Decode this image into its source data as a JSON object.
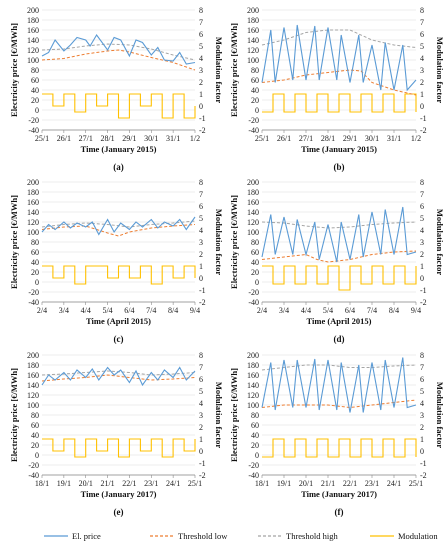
{
  "colors": {
    "price": "#5b9bd5",
    "low": "#ed7d31",
    "high": "#a5a5a5",
    "mod": "#ffc000",
    "grid": "#d9d9d9"
  },
  "legend": [
    {
      "key": "price",
      "label": "El. price",
      "style": "solid"
    },
    {
      "key": "low",
      "label": "Threshold low",
      "style": "dashed"
    },
    {
      "key": "high",
      "label": "Threshold high",
      "style": "dashed"
    },
    {
      "key": "mod",
      "label": "Modulation",
      "style": "solid"
    }
  ],
  "chart_data": [
    {
      "id": "a",
      "label": "(a)",
      "type": "line",
      "xlabel": "Time (January 2015)",
      "ylabel": "Electricity price [€/MWh]",
      "y2label": "Modulation factor",
      "xticks": [
        "25/1",
        "26/1",
        "27/1",
        "28/1",
        "29/1",
        "30/1",
        "31/1",
        "1/2"
      ],
      "ylim": [
        -40,
        200
      ],
      "y2lim": [
        -2,
        8
      ],
      "yticks": [
        -40,
        -20,
        0,
        20,
        40,
        60,
        80,
        100,
        120,
        140,
        160,
        180,
        200
      ],
      "y2ticks": [
        -2,
        -1,
        0,
        1,
        2,
        3,
        4,
        5,
        6,
        7,
        8
      ],
      "series": [
        {
          "key": "price",
          "x": [
            0,
            0.3,
            0.6,
            1,
            1.3,
            1.6,
            2,
            2.2,
            2.5,
            3,
            3.3,
            3.6,
            4,
            4.3,
            4.6,
            5,
            5.3,
            5.6,
            6,
            6.3,
            6.6,
            7
          ],
          "values": [
            108,
            115,
            140,
            118,
            130,
            145,
            140,
            128,
            150,
            120,
            145,
            140,
            108,
            140,
            135,
            110,
            125,
            100,
            98,
            115,
            92,
            95
          ]
        },
        {
          "key": "low",
          "x": [
            0,
            1,
            2,
            3,
            3.5,
            4,
            5,
            6,
            7
          ],
          "values": [
            100,
            103,
            112,
            118,
            120,
            116,
            105,
            95,
            80
          ]
        },
        {
          "key": "high",
          "x": [
            0,
            1,
            2,
            3,
            4,
            5,
            6,
            7
          ],
          "values": [
            120,
            122,
            128,
            132,
            130,
            122,
            110,
            100
          ]
        },
        {
          "key": "mod",
          "x": [
            0,
            0.5,
            1,
            1.5,
            2,
            2.5,
            3,
            3.5,
            4,
            4.5,
            5,
            5.5,
            6,
            6.5,
            7
          ],
          "values": [
            1,
            0,
            1,
            -0.5,
            1,
            0,
            1,
            -1,
            1,
            0,
            1,
            -1,
            1,
            -1,
            0
          ]
        }
      ]
    },
    {
      "id": "b",
      "label": "(b)",
      "type": "line",
      "xlabel": "Time (January 2015)",
      "ylabel": "Electricity price [€/MWh]",
      "y2label": "Modulation factor",
      "xticks": [
        "25/1",
        "26/1",
        "27/1",
        "28/1",
        "29/1",
        "30/1",
        "31/1",
        "1/2"
      ],
      "ylim": [
        -40,
        200
      ],
      "y2lim": [
        -2,
        8
      ],
      "yticks": [
        -40,
        -20,
        0,
        20,
        40,
        60,
        80,
        100,
        120,
        140,
        160,
        180,
        200
      ],
      "y2ticks": [
        -2,
        -1,
        0,
        1,
        2,
        3,
        4,
        5,
        6,
        7,
        8
      ],
      "series": [
        {
          "key": "price",
          "x": [
            0,
            0.4,
            0.6,
            1,
            1.4,
            1.6,
            2,
            2.4,
            2.6,
            3,
            3.4,
            3.6,
            4,
            4.4,
            4.6,
            5,
            5.4,
            5.6,
            6,
            6.4,
            6.6,
            7
          ],
          "values": [
            55,
            160,
            55,
            165,
            60,
            170,
            60,
            168,
            60,
            165,
            60,
            150,
            55,
            150,
            55,
            130,
            40,
            135,
            40,
            130,
            40,
            60
          ]
        },
        {
          "key": "low",
          "x": [
            0,
            1,
            2,
            3,
            4,
            4.5,
            5,
            6,
            7
          ],
          "values": [
            55,
            60,
            70,
            75,
            80,
            78,
            55,
            40,
            30
          ]
        },
        {
          "key": "high",
          "x": [
            0,
            1,
            2,
            3,
            4,
            5,
            6,
            7
          ],
          "values": [
            130,
            140,
            155,
            160,
            160,
            140,
            130,
            125
          ]
        },
        {
          "key": "mod",
          "x": [
            0,
            0.5,
            1,
            1.5,
            2,
            2.5,
            3,
            3.5,
            4,
            4.5,
            5,
            5.5,
            6,
            6.5,
            7
          ],
          "values": [
            -0.5,
            1,
            -0.5,
            1,
            -0.5,
            1,
            -0.5,
            1,
            -0.5,
            1,
            -0.5,
            1,
            -0.5,
            1,
            -0.5
          ]
        }
      ]
    },
    {
      "id": "c",
      "label": "(c)",
      "type": "line",
      "xlabel": "Time (April 2015)",
      "ylabel": "Electricity price [€/MWh]",
      "y2label": "Modulation factor",
      "xticks": [
        "2/4",
        "3/4",
        "4/4",
        "5/4",
        "6/4",
        "7/4",
        "8/4",
        "9/4"
      ],
      "ylim": [
        -40,
        200
      ],
      "y2lim": [
        -2,
        8
      ],
      "yticks": [
        -40,
        -20,
        0,
        20,
        40,
        60,
        80,
        100,
        120,
        140,
        160,
        180,
        200
      ],
      "y2ticks": [
        -2,
        -1,
        0,
        1,
        2,
        3,
        4,
        5,
        6,
        7,
        8
      ],
      "series": [
        {
          "key": "price",
          "x": [
            0,
            0.3,
            0.6,
            1,
            1.3,
            1.6,
            2,
            2.3,
            2.6,
            3,
            3.3,
            3.6,
            4,
            4.3,
            4.6,
            5,
            5.3,
            5.6,
            6,
            6.3,
            6.6,
            7
          ],
          "values": [
            100,
            115,
            105,
            120,
            108,
            118,
            110,
            120,
            95,
            125,
            100,
            118,
            105,
            120,
            110,
            125,
            108,
            120,
            112,
            125,
            105,
            130
          ]
        },
        {
          "key": "low",
          "x": [
            0,
            1,
            2,
            3,
            3.5,
            4,
            5,
            6,
            7
          ],
          "values": [
            105,
            110,
            112,
            98,
            92,
            100,
            108,
            112,
            115
          ]
        },
        {
          "key": "high",
          "x": [
            0,
            1,
            2,
            3,
            4,
            5,
            6,
            7
          ],
          "values": [
            110,
            115,
            118,
            115,
            110,
            115,
            118,
            122
          ]
        },
        {
          "key": "mod",
          "x": [
            0,
            0.5,
            1,
            1.5,
            2,
            2.5,
            3,
            3.5,
            4,
            4.5,
            5,
            5.5,
            6,
            6.5,
            7
          ],
          "values": [
            1,
            0,
            1,
            -0.5,
            1,
            1,
            0,
            1,
            0,
            1,
            -0.5,
            1,
            0,
            1,
            0
          ]
        }
      ]
    },
    {
      "id": "d",
      "label": "(d)",
      "type": "line",
      "xlabel": "Time (April 2015)",
      "ylabel": "Electricity price [€/MWh]",
      "y2label": "Modulation factor",
      "xticks": [
        "2/4",
        "3/4",
        "4/4",
        "5/4",
        "6/4",
        "7/4",
        "8/4",
        "9/4"
      ],
      "ylim": [
        -40,
        200
      ],
      "y2lim": [
        -2,
        8
      ],
      "yticks": [
        -40,
        -20,
        0,
        20,
        40,
        60,
        80,
        100,
        120,
        140,
        160,
        180,
        200
      ],
      "y2ticks": [
        -2,
        -1,
        0,
        1,
        2,
        3,
        4,
        5,
        6,
        7,
        8
      ],
      "series": [
        {
          "key": "price",
          "x": [
            0,
            0.4,
            0.6,
            1,
            1.4,
            1.6,
            2,
            2.4,
            2.6,
            3,
            3.4,
            3.6,
            4,
            4.4,
            4.6,
            5,
            5.4,
            5.6,
            6,
            6.4,
            6.6,
            7
          ],
          "values": [
            50,
            135,
            55,
            130,
            55,
            125,
            55,
            120,
            45,
            115,
            40,
            120,
            45,
            135,
            50,
            140,
            55,
            145,
            55,
            150,
            55,
            60
          ]
        },
        {
          "key": "low",
          "x": [
            0,
            1,
            2,
            2.5,
            3,
            4,
            5,
            6,
            7
          ],
          "values": [
            45,
            50,
            55,
            45,
            40,
            45,
            55,
            60,
            62
          ]
        },
        {
          "key": "high",
          "x": [
            0,
            1,
            2,
            3,
            4,
            5,
            6,
            7
          ],
          "values": [
            120,
            118,
            112,
            108,
            110,
            115,
            118,
            120
          ]
        },
        {
          "key": "mod",
          "x": [
            0,
            0.5,
            1,
            1.5,
            2,
            2.5,
            3,
            3.5,
            4,
            4.5,
            5,
            5.5,
            6,
            6.5,
            7
          ],
          "values": [
            1,
            -0.5,
            1,
            -0.5,
            1,
            -0.5,
            1,
            -1,
            1,
            -0.5,
            1,
            -0.5,
            1,
            -0.5,
            1
          ]
        }
      ]
    },
    {
      "id": "e",
      "label": "(e)",
      "type": "line",
      "xlabel": "Time (January 2017)",
      "ylabel": "Electricity price [€/MWh]",
      "y2label": "Modulation factor",
      "xticks": [
        "18/1",
        "19/1",
        "20/1",
        "21/1",
        "22/1",
        "23/1",
        "24/1",
        "25/1"
      ],
      "ylim": [
        -40,
        200
      ],
      "y2lim": [
        -2,
        8
      ],
      "yticks": [
        -40,
        -20,
        0,
        20,
        40,
        60,
        80,
        100,
        120,
        140,
        160,
        180,
        200
      ],
      "y2ticks": [
        -2,
        -1,
        0,
        1,
        2,
        3,
        4,
        5,
        6,
        7,
        8
      ],
      "series": [
        {
          "key": "price",
          "x": [
            0,
            0.3,
            0.6,
            1,
            1.3,
            1.6,
            2,
            2.3,
            2.6,
            3,
            3.3,
            3.6,
            4,
            4.3,
            4.6,
            5,
            5.3,
            5.6,
            6,
            6.3,
            6.6,
            7
          ],
          "values": [
            140,
            160,
            150,
            165,
            150,
            170,
            155,
            172,
            150,
            175,
            160,
            170,
            145,
            168,
            140,
            165,
            150,
            170,
            155,
            175,
            150,
            168
          ]
        },
        {
          "key": "low",
          "x": [
            0,
            1,
            2,
            3,
            4,
            5,
            6,
            7
          ],
          "values": [
            148,
            152,
            155,
            160,
            155,
            150,
            152,
            155
          ]
        },
        {
          "key": "high",
          "x": [
            0,
            1,
            2,
            3,
            4,
            5,
            6,
            7
          ],
          "values": [
            160,
            162,
            165,
            168,
            165,
            160,
            162,
            165
          ]
        },
        {
          "key": "mod",
          "x": [
            0,
            0.5,
            1,
            1.5,
            2,
            2.5,
            3,
            3.5,
            4,
            4.5,
            5,
            5.5,
            6,
            6.5,
            7
          ],
          "values": [
            1,
            0,
            1,
            -0.5,
            1,
            0,
            1,
            -0.5,
            1,
            0,
            1,
            -0.5,
            1,
            0,
            1
          ]
        }
      ]
    },
    {
      "id": "f",
      "label": "(f)",
      "type": "line",
      "xlabel": "Time (January 2017)",
      "ylabel": "Electricity price [€/MWh]",
      "y2label": "Modulation factor",
      "xticks": [
        "18/1",
        "19/1",
        "20/1",
        "21/1",
        "22/1",
        "23/1",
        "24/1",
        "25/1"
      ],
      "ylim": [
        -40,
        200
      ],
      "y2lim": [
        -2,
        8
      ],
      "yticks": [
        -40,
        -20,
        0,
        20,
        40,
        60,
        80,
        100,
        120,
        140,
        160,
        180,
        200
      ],
      "y2ticks": [
        -2,
        -1,
        0,
        1,
        2,
        3,
        4,
        5,
        6,
        7,
        8
      ],
      "series": [
        {
          "key": "price",
          "x": [
            0,
            0.4,
            0.6,
            1,
            1.4,
            1.6,
            2,
            2.4,
            2.6,
            3,
            3.4,
            3.6,
            4,
            4.4,
            4.6,
            5,
            5.4,
            5.6,
            6,
            6.4,
            6.6,
            7
          ],
          "values": [
            95,
            185,
            90,
            190,
            95,
            190,
            95,
            192,
            90,
            190,
            90,
            185,
            85,
            180,
            85,
            185,
            90,
            190,
            95,
            195,
            95,
            100
          ]
        },
        {
          "key": "low",
          "x": [
            0,
            1,
            2,
            3,
            4,
            5,
            6,
            7
          ],
          "values": [
            95,
            100,
            100,
            100,
            95,
            100,
            105,
            110
          ]
        },
        {
          "key": "high",
          "x": [
            0,
            1,
            2,
            3,
            4,
            5,
            6,
            7
          ],
          "values": [
            170,
            175,
            180,
            180,
            175,
            175,
            178,
            180
          ]
        },
        {
          "key": "mod",
          "x": [
            0,
            0.5,
            1,
            1.5,
            2,
            2.5,
            3,
            3.5,
            4,
            4.5,
            5,
            5.5,
            6,
            6.5,
            7
          ],
          "values": [
            -0.5,
            1,
            -0.5,
            1,
            -0.5,
            1,
            -0.5,
            1,
            -0.5,
            1,
            -0.5,
            1,
            -0.5,
            1,
            -0.5
          ]
        }
      ]
    }
  ]
}
